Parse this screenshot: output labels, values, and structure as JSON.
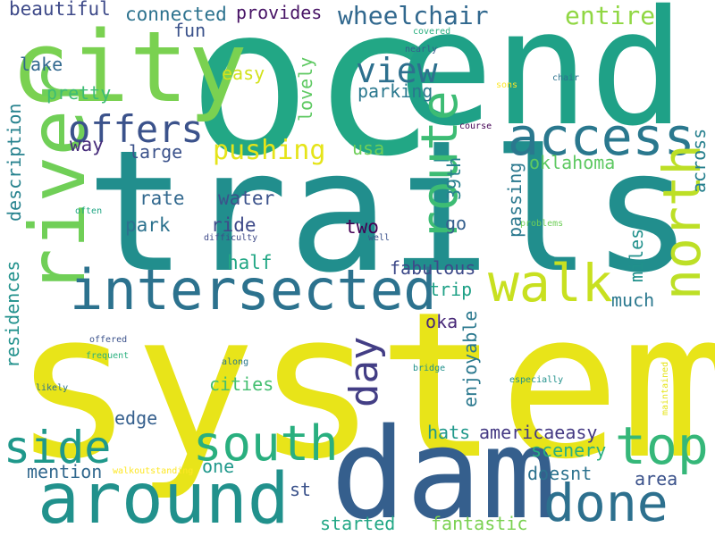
{
  "words": [
    {
      "text": "system",
      "color": "#e8e419"
    },
    {
      "text": "trails",
      "color": "#218e8d"
    },
    {
      "text": "oc",
      "color": "#22a785"
    },
    {
      "text": "end",
      "color": "#1fa187"
    },
    {
      "text": "dam",
      "color": "#355f8d"
    },
    {
      "text": "city",
      "color": "#7ad151"
    },
    {
      "text": "river",
      "color": "#70cf57"
    },
    {
      "text": "intersected",
      "color": "#2c728e"
    },
    {
      "text": "around",
      "color": "#21918c"
    },
    {
      "text": "access",
      "color": "#2a788e"
    },
    {
      "text": "walk",
      "color": "#c8e020"
    },
    {
      "text": "route",
      "color": "#3dbc74"
    },
    {
      "text": "north",
      "color": "#bddf26"
    },
    {
      "text": "done",
      "color": "#2d708e"
    },
    {
      "text": "top",
      "color": "#35b779"
    },
    {
      "text": "south",
      "color": "#29af7f"
    },
    {
      "text": "side",
      "color": "#1f988b"
    },
    {
      "text": "day",
      "color": "#433e85"
    },
    {
      "text": "offers",
      "color": "#3b528b"
    },
    {
      "text": "view",
      "color": "#2d708e"
    },
    {
      "text": "wheelchair",
      "color": "#31688e"
    },
    {
      "text": "pushing",
      "color": "#e5e419"
    },
    {
      "text": "entire",
      "color": "#90d743"
    },
    {
      "text": "lovely",
      "color": "#5ec962"
    },
    {
      "text": "connected",
      "color": "#2c728e"
    },
    {
      "text": "provides",
      "color": "#471365"
    },
    {
      "text": "beautiful",
      "color": "#3e4a89"
    },
    {
      "text": "fun",
      "color": "#3b528b"
    },
    {
      "text": "lake",
      "color": "#31688e"
    },
    {
      "text": "pretty",
      "color": "#3dbc74"
    },
    {
      "text": "easy",
      "color": "#d2e21b"
    },
    {
      "text": "parking",
      "color": "#2a788e"
    },
    {
      "text": "way",
      "color": "#472d7b"
    },
    {
      "text": "large",
      "color": "#3b528b"
    },
    {
      "text": "usa",
      "color": "#6ece58"
    },
    {
      "text": "oklahoma",
      "color": "#5ec962"
    },
    {
      "text": "across",
      "color": "#27808e"
    },
    {
      "text": "rate",
      "color": "#31688e"
    },
    {
      "text": "water",
      "color": "#3b528b"
    },
    {
      "text": "39th",
      "color": "#27808e"
    },
    {
      "text": "passing",
      "color": "#2a788e"
    },
    {
      "text": "description",
      "color": "#26828e"
    },
    {
      "text": "park",
      "color": "#2c728e"
    },
    {
      "text": "ride",
      "color": "#3e4a89"
    },
    {
      "text": "two",
      "color": "#440154"
    },
    {
      "text": "go",
      "color": "#355f8d"
    },
    {
      "text": "residences",
      "color": "#21918c"
    },
    {
      "text": "half",
      "color": "#22a785"
    },
    {
      "text": "fabulous",
      "color": "#3e4a89"
    },
    {
      "text": "miles",
      "color": "#21918c"
    },
    {
      "text": "trip",
      "color": "#1fa187"
    },
    {
      "text": "much",
      "color": "#2a788e"
    },
    {
      "text": "oka",
      "color": "#482878"
    },
    {
      "text": "enjoyable",
      "color": "#2a788e"
    },
    {
      "text": "cities",
      "color": "#44bf70"
    },
    {
      "text": "edge",
      "color": "#355f8d"
    },
    {
      "text": "hats",
      "color": "#1f988b"
    },
    {
      "text": "americaeasy",
      "color": "#443983"
    },
    {
      "text": "scenery",
      "color": "#28ae80"
    },
    {
      "text": "mention",
      "color": "#31688e"
    },
    {
      "text": "one",
      "color": "#1f988b"
    },
    {
      "text": "doesnt",
      "color": "#2c728e"
    },
    {
      "text": "area",
      "color": "#3b528b"
    },
    {
      "text": "st",
      "color": "#3b528b"
    },
    {
      "text": "started",
      "color": "#22a785"
    },
    {
      "text": "fantastic",
      "color": "#7ad151"
    },
    {
      "text": "covered",
      "color": "#29af7f"
    },
    {
      "text": "nearly",
      "color": "#355f8d"
    },
    {
      "text": "sons",
      "color": "#fde725"
    },
    {
      "text": "chair",
      "color": "#2c728e"
    },
    {
      "text": "course",
      "color": "#440154"
    },
    {
      "text": "often",
      "color": "#22a785"
    },
    {
      "text": "difficulty",
      "color": "#3e4a89"
    },
    {
      "text": "well",
      "color": "#3b528b"
    },
    {
      "text": "problems",
      "color": "#6ece58"
    },
    {
      "text": "offered",
      "color": "#3b528b"
    },
    {
      "text": "frequent",
      "color": "#2ab07f"
    },
    {
      "text": "along",
      "color": "#2a788e"
    },
    {
      "text": "bridge",
      "color": "#21918c"
    },
    {
      "text": "maintained",
      "color": "#e5e419"
    },
    {
      "text": "likely",
      "color": "#2c728e"
    },
    {
      "text": "especially",
      "color": "#21918c"
    },
    {
      "text": "walkoutstanding",
      "color": "#fde725"
    }
  ]
}
